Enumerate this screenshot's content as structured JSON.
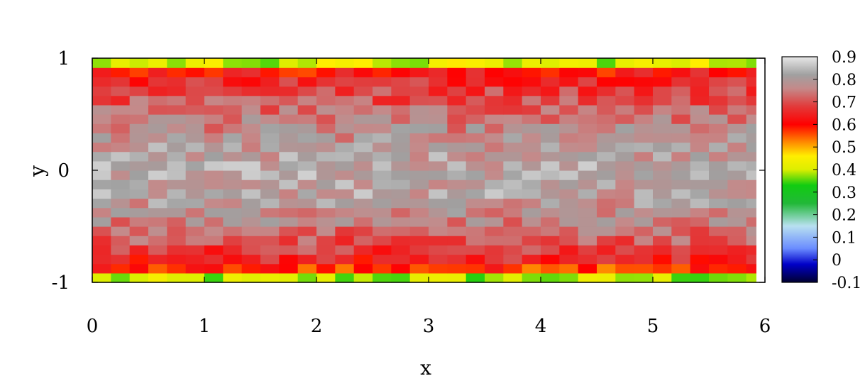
{
  "chart_data": {
    "type": "heatmap",
    "title": "",
    "xlabel": "x",
    "ylabel": "y",
    "xlim": [
      0,
      6
    ],
    "ylim": [
      -1,
      1
    ],
    "x_ticks": [
      "0",
      "1",
      "2",
      "3",
      "4",
      "5",
      "6"
    ],
    "x_tick_values": [
      0,
      1,
      2,
      3,
      4,
      5,
      6
    ],
    "y_ticks": [
      "-1",
      "0",
      "1"
    ],
    "y_tick_values": [
      -1,
      0,
      1
    ],
    "grid": false,
    "colorbar": {
      "range": [
        -0.1,
        0.9
      ],
      "tick_labels": [
        "0.9",
        "0.8",
        "0.7",
        "0.6",
        "0.5",
        "0.4",
        "0.3",
        "0.2",
        "0.1",
        "0",
        "-0.1"
      ],
      "tick_values": [
        0.9,
        0.8,
        0.7,
        0.6,
        0.5,
        0.4,
        0.3,
        0.2,
        0.1,
        0,
        -0.1
      ],
      "palette": [
        {
          "v": -0.1,
          "color": "#000030"
        },
        {
          "v": -0.02,
          "color": "#0000c8"
        },
        {
          "v": 0.05,
          "color": "#6a8cff"
        },
        {
          "v": 0.15,
          "color": "#b8e0f0"
        },
        {
          "v": 0.25,
          "color": "#22b838"
        },
        {
          "v": 0.33,
          "color": "#11cc11"
        },
        {
          "v": 0.4,
          "color": "#ddee00"
        },
        {
          "v": 0.46,
          "color": "#ffee00"
        },
        {
          "v": 0.52,
          "color": "#ff8c00"
        },
        {
          "v": 0.6,
          "color": "#ff0000"
        },
        {
          "v": 0.68,
          "color": "#e23a3a"
        },
        {
          "v": 0.76,
          "color": "#c48a8a"
        },
        {
          "v": 0.82,
          "color": "#a0a0a0"
        },
        {
          "v": 0.9,
          "color": "#e8e8e8"
        }
      ]
    },
    "grid_cols": 36,
    "grid_rows": 24,
    "profile_y": [
      -1.0,
      -0.95,
      -0.9,
      -0.8,
      -0.65,
      -0.45,
      -0.2,
      0.0,
      0.2,
      0.45,
      0.65,
      0.8,
      0.9,
      0.95,
      1.0
    ],
    "profile_v": [
      0.2,
      0.42,
      0.56,
      0.64,
      0.7,
      0.76,
      0.81,
      0.82,
      0.8,
      0.75,
      0.7,
      0.66,
      0.6,
      0.45,
      0.2
    ]
  }
}
